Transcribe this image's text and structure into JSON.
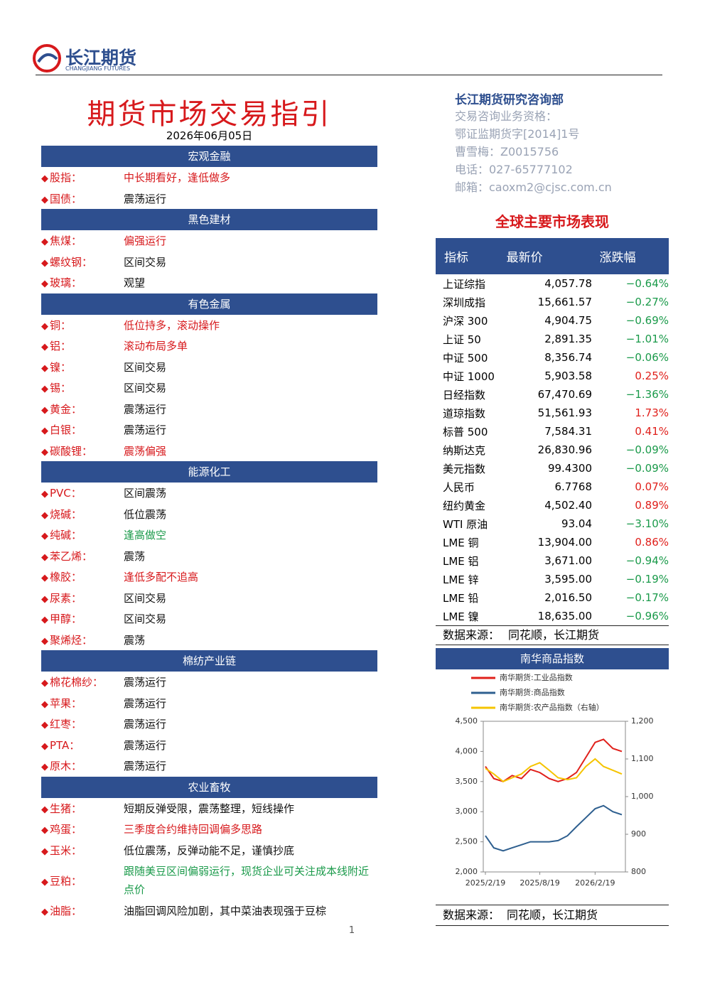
{
  "header": {
    "logo_cn": "长江期货",
    "logo_en": "CHANGJIANG FUTURES"
  },
  "title": "期货市场交易指引",
  "date": "2026年06月05日",
  "sections": [
    {
      "name": "宏观金融",
      "items": [
        {
          "label": "股指：",
          "view": "中长期看好，逢低做多",
          "color": "#d7191c"
        },
        {
          "label": "国债：",
          "view": "震荡运行",
          "color": "#111"
        }
      ]
    },
    {
      "name": "黑色建材",
      "items": [
        {
          "label": "焦煤：",
          "view": "偏强运行",
          "color": "#d7191c"
        },
        {
          "label": "螺纹钢：",
          "view": "区间交易",
          "color": "#111"
        },
        {
          "label": "玻璃：",
          "view": "观望",
          "color": "#111"
        }
      ]
    },
    {
      "name": "有色金属",
      "items": [
        {
          "label": "铜：",
          "view": "低位持多，滚动操作",
          "color": "#d7191c"
        },
        {
          "label": "铝：",
          "view": "滚动布局多单",
          "color": "#d7191c"
        },
        {
          "label": "镍：",
          "view": "区间交易",
          "color": "#111"
        },
        {
          "label": "锡：",
          "view": "区间交易",
          "color": "#111"
        },
        {
          "label": "黄金：",
          "view": "震荡运行",
          "color": "#111"
        },
        {
          "label": "白银：",
          "view": "震荡运行",
          "color": "#111"
        },
        {
          "label": "碳酸锂：",
          "view": "震荡偏强",
          "color": "#d7191c"
        }
      ]
    },
    {
      "name": "能源化工",
      "items": [
        {
          "label": "PVC：",
          "view": "区间震荡",
          "color": "#111"
        },
        {
          "label": "烧碱：",
          "view": "低位震荡",
          "color": "#111"
        },
        {
          "label": "纯碱：",
          "view": "逢高做空",
          "color": "#1a9a4a"
        },
        {
          "label": "苯乙烯：",
          "view": "震荡",
          "color": "#111"
        },
        {
          "label": "橡胶：",
          "view": "逢低多配不追高",
          "color": "#d7191c"
        },
        {
          "label": "尿素：",
          "view": "区间交易",
          "color": "#111"
        },
        {
          "label": "甲醇：",
          "view": "区间交易",
          "color": "#111"
        },
        {
          "label": "聚烯烃：",
          "view": "震荡",
          "color": "#111"
        }
      ]
    },
    {
      "name": "棉纺产业链",
      "items": [
        {
          "label": "棉花棉纱：",
          "view": "震荡运行",
          "color": "#111"
        },
        {
          "label": "苹果：",
          "view": "震荡运行",
          "color": "#111"
        },
        {
          "label": "红枣：",
          "view": "震荡运行",
          "color": "#111"
        },
        {
          "label": "PTA：",
          "view": "震荡运行",
          "color": "#111"
        },
        {
          "label": "原木：",
          "view": "震荡运行",
          "color": "#111"
        }
      ]
    },
    {
      "name": "农业畜牧",
      "items": [
        {
          "label": "生猪：",
          "view": "短期反弹受限，震荡整理，短线操作",
          "color": "#111"
        },
        {
          "label": "鸡蛋：",
          "view": "三季度合约维持回调偏多思路",
          "color": "#d7191c"
        },
        {
          "label": "玉米：",
          "view": "低位震荡，反弹动能不足，谨慎抄底",
          "color": "#111"
        },
        {
          "label": "豆粕：",
          "view": "跟随美豆区间偏弱运行，现货企业可关注成本线附近点价",
          "color": "#1a9a4a"
        },
        {
          "label": "油脂：",
          "view": "油脂回调风险加剧，其中菜油表现强于豆棕",
          "color": "#111"
        }
      ]
    }
  ],
  "department": {
    "name": "长江期货研究咨询部",
    "lines": [
      "交易咨询业务资格：",
      "鄂证监期货字[2014]1号",
      "曹雪梅：Z0015756",
      "电话：027-65777102",
      "邮箱：caoxm2@cjsc.com.cn"
    ]
  },
  "market": {
    "title": "全球主要市场表现",
    "columns": [
      "指标",
      "最新价",
      "涨跌幅"
    ],
    "rows": [
      {
        "name": "上证综指",
        "price": "4,057.78",
        "change": "−0.64%",
        "color": "#1a9a4a"
      },
      {
        "name": "深圳成指",
        "price": "15,661.57",
        "change": "−0.27%",
        "color": "#1a9a4a"
      },
      {
        "name": "沪深 300",
        "price": "4,904.75",
        "change": "−0.69%",
        "color": "#1a9a4a"
      },
      {
        "name": "上证 50",
        "price": "2,891.35",
        "change": "−1.01%",
        "color": "#1a9a4a"
      },
      {
        "name": "中证 500",
        "price": "8,356.74",
        "change": "−0.06%",
        "color": "#1a9a4a"
      },
      {
        "name": "中证 1000",
        "price": "5,903.58",
        "change": "0.25%",
        "color": "#e0201b"
      },
      {
        "name": "日经指数",
        "price": "67,470.69",
        "change": "−1.36%",
        "color": "#1a9a4a"
      },
      {
        "name": "道琼指数",
        "price": "51,561.93",
        "change": "1.73%",
        "color": "#e0201b"
      },
      {
        "name": "标普 500",
        "price": "7,584.31",
        "change": "0.41%",
        "color": "#e0201b"
      },
      {
        "name": "纳斯达克",
        "price": "26,830.96",
        "change": "−0.09%",
        "color": "#1a9a4a"
      },
      {
        "name": "美元指数",
        "price": "99.4300",
        "change": "−0.09%",
        "color": "#1a9a4a"
      },
      {
        "name": "人民币",
        "price": "6.7768",
        "change": "0.07%",
        "color": "#e0201b"
      },
      {
        "name": "纽约黄金",
        "price": "4,502.40",
        "change": "0.89%",
        "color": "#e0201b"
      },
      {
        "name": "WTI 原油",
        "price": "93.04",
        "change": "−3.10%",
        "color": "#1a9a4a"
      },
      {
        "name": "LME 铜",
        "price": "13,904.00",
        "change": "0.86%",
        "color": "#e0201b"
      },
      {
        "name": "LME 铝",
        "price": "3,671.00",
        "change": "−0.94%",
        "color": "#1a9a4a"
      },
      {
        "name": "LME 锌",
        "price": "3,595.00",
        "change": "−0.19%",
        "color": "#1a9a4a"
      },
      {
        "name": "LME 铅",
        "price": "2,016.50",
        "change": "−0.17%",
        "color": "#1a9a4a"
      },
      {
        "name": "LME 镍",
        "price": "18,635.00",
        "change": "−0.96%",
        "color": "#1a9a4a"
      }
    ],
    "source": {
      "label": "数据来源：",
      "text": "同花顺，长江期货"
    }
  },
  "chart_data": {
    "type": "line",
    "title": "南华商品指数",
    "x": [
      "2025/2/19",
      "2025/3/19",
      "2025/4/19",
      "2025/5/19",
      "2025/6/19",
      "2025/7/19",
      "2025/8/19",
      "2025/9/19",
      "2025/10/19",
      "2025/11/19",
      "2025/12/19",
      "2026/1/19",
      "2026/2/19",
      "2026/3/19",
      "2026/4/19",
      "2026/5/19"
    ],
    "series": [
      {
        "name": "南华期货:工业品指数",
        "color": "#e0201b",
        "values": [
          3750,
          3550,
          3500,
          3600,
          3550,
          3700,
          3650,
          3550,
          3500,
          3550,
          3650,
          3900,
          4150,
          4200,
          4050,
          4000
        ]
      },
      {
        "name": "南华期货:商品指数",
        "color": "#2e5f8f",
        "values": [
          2600,
          2400,
          2350,
          2400,
          2450,
          2500,
          2500,
          2500,
          2520,
          2600,
          2750,
          2900,
          3050,
          3100,
          3000,
          2950
        ]
      },
      {
        "name": "南华期货:农产品指数（右轴）",
        "color": "#f5c400",
        "axis": "y2",
        "values": [
          1075,
          1060,
          1040,
          1050,
          1060,
          1080,
          1090,
          1070,
          1050,
          1045,
          1050,
          1080,
          1100,
          1080,
          1070,
          1060
        ]
      }
    ],
    "xticks": [
      "2025/2/19",
      "2025/8/19",
      "2026/2/19"
    ],
    "ylim": [
      2000,
      4500
    ],
    "yticks": [
      {
        "value": 2000,
        "label": "2,000"
      },
      {
        "value": 2500,
        "label": "2,500"
      },
      {
        "value": 3000,
        "label": "3,000"
      },
      {
        "value": 3500,
        "label": "3,500"
      },
      {
        "value": 4000,
        "label": "4,000"
      },
      {
        "value": 4500,
        "label": "4,500"
      }
    ],
    "y2lim": [
      800,
      1200
    ],
    "y2ticks": [
      800,
      900,
      {
        "value": 1000,
        "label": "1,000"
      },
      {
        "value": 1100,
        "label": "1,100"
      },
      {
        "value": 1200,
        "label": "1,200"
      }
    ],
    "source": {
      "label": "数据来源：",
      "text": "同花顺，长江期货"
    }
  },
  "page_number": "1"
}
